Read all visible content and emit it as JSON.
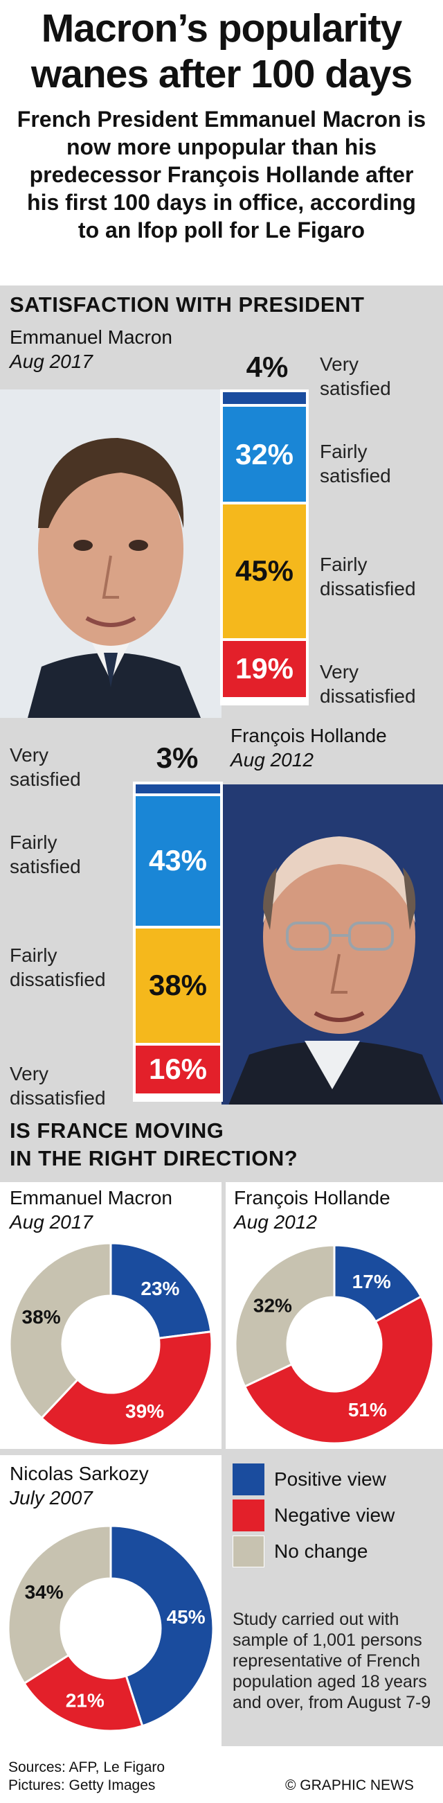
{
  "title_line1": "Macron’s popularity",
  "title_line2": "wanes after 100 days",
  "subtitle": "French President Emmanuel Macron is now more unpopular than his predecessor François Hollande after his first 100 days in office, according to an Ifop poll for Le Figaro",
  "section1_heading": "SATISFACTION WITH PRESIDENT",
  "section2_heading_line1": "IS FRANCE MOVING",
  "section2_heading_line2": "IN THE RIGHT DIRECTION?",
  "colors": {
    "very_satisfied": "#1a4c9e",
    "fairly_satisfied": "#1a86d6",
    "fairly_dissatisfied": "#f5b81c",
    "very_dissatisfied": "#e3202a",
    "positive": "#1a4c9e",
    "negative": "#e3202a",
    "no_change": "#c7c2b0",
    "band": "#d8d8d8"
  },
  "chart_data": [
    {
      "type": "bar",
      "name": "Emmanuel Macron",
      "period": "Aug 2017",
      "categories": [
        "Very satisfied",
        "Fairly satisfied",
        "Fairly dissatisfied",
        "Very dissatisfied"
      ],
      "values": [
        4,
        32,
        45,
        19
      ],
      "labels": [
        "4%",
        "32%",
        "45%",
        "19%"
      ]
    },
    {
      "type": "bar",
      "name": "François Hollande",
      "period": "Aug 2012",
      "categories": [
        "Very satisfied",
        "Fairly satisfied",
        "Fairly dissatisfied",
        "Very dissatisfied"
      ],
      "values": [
        3,
        43,
        38,
        16
      ],
      "labels": [
        "3%",
        "43%",
        "38%",
        "16%"
      ]
    },
    {
      "type": "pie",
      "name": "Emmanuel Macron",
      "period": "Aug 2017",
      "categories": [
        "Positive view",
        "Negative view",
        "No change"
      ],
      "values": [
        23,
        39,
        38
      ],
      "labels": [
        "23%",
        "39%",
        "38%"
      ]
    },
    {
      "type": "pie",
      "name": "François Hollande",
      "period": "Aug 2012",
      "categories": [
        "Positive view",
        "Negative view",
        "No change"
      ],
      "values": [
        17,
        51,
        32
      ],
      "labels": [
        "17%",
        "51%",
        "32%"
      ]
    },
    {
      "type": "pie",
      "name": "Nicolas Sarkozy",
      "period": "July 2007",
      "categories": [
        "Positive view",
        "Negative view",
        "No change"
      ],
      "values": [
        45,
        21,
        34
      ],
      "labels": [
        "45%",
        "21%",
        "34%"
      ]
    }
  ],
  "bar_categories": {
    "very_satisfied": [
      "Very",
      "satisfied"
    ],
    "fairly_satisfied": [
      "Fairly",
      "satisfied"
    ],
    "fairly_dissatisfied": [
      "Fairly",
      "dissatisfied"
    ],
    "very_dissatisfied": [
      "Very",
      "dissatisfied"
    ]
  },
  "legend": {
    "positive": "Positive view",
    "negative": "Negative view",
    "no_change": "No change"
  },
  "note": "Study carried out with sample of 1,001 persons representative of French population aged 18 years and over, from August 7-9",
  "sources": "Sources: AFP, Le Figaro",
  "pictures": "Pictures: Getty Images",
  "credit": "© GRAPHIC NEWS"
}
